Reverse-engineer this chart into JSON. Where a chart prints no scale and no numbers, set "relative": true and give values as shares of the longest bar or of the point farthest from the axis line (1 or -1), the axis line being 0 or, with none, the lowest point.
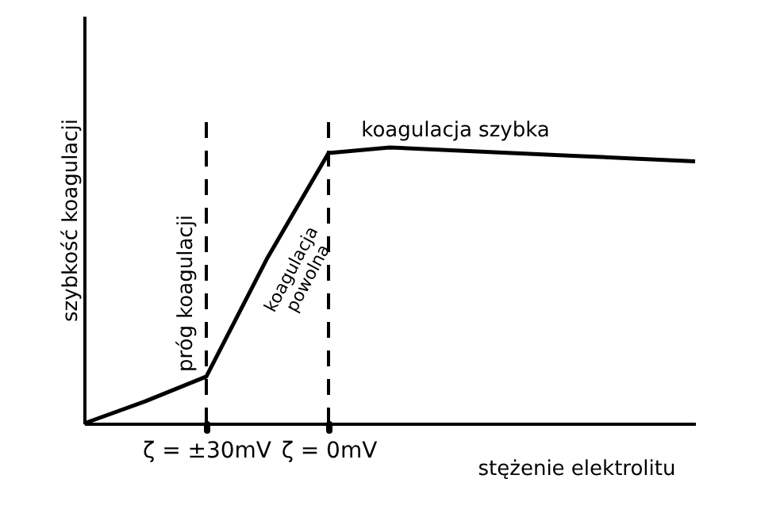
{
  "chart_data": {
    "type": "line",
    "relative": true,
    "xlabel": "stężenie elektrolitu",
    "ylabel": "szybkość koagulacji",
    "categories": [
      null,
      null,
      "ζ = ±30mV",
      null,
      "ζ = 0mV",
      null,
      null,
      null,
      null,
      null,
      null
    ],
    "series": [
      {
        "color": "#000000",
        "values": [
          0,
          0.08,
          0.17,
          0.6,
          0.98,
          1,
          0.99,
          0.98,
          0.97,
          0.96,
          0.95
        ]
      }
    ],
    "ref_lines": [
      {
        "axis": "x",
        "value": "ζ = ±30mV",
        "line_style": "dashed"
      },
      {
        "axis": "x",
        "value": "ζ = 0mV",
        "line_style": "dashed"
      }
    ],
    "annotations": [
      "próg koagulacji",
      "koagulacja powolna",
      "koagulacja szybka"
    ],
    "grid": false,
    "marker": "none",
    "line_style": "solid"
  }
}
